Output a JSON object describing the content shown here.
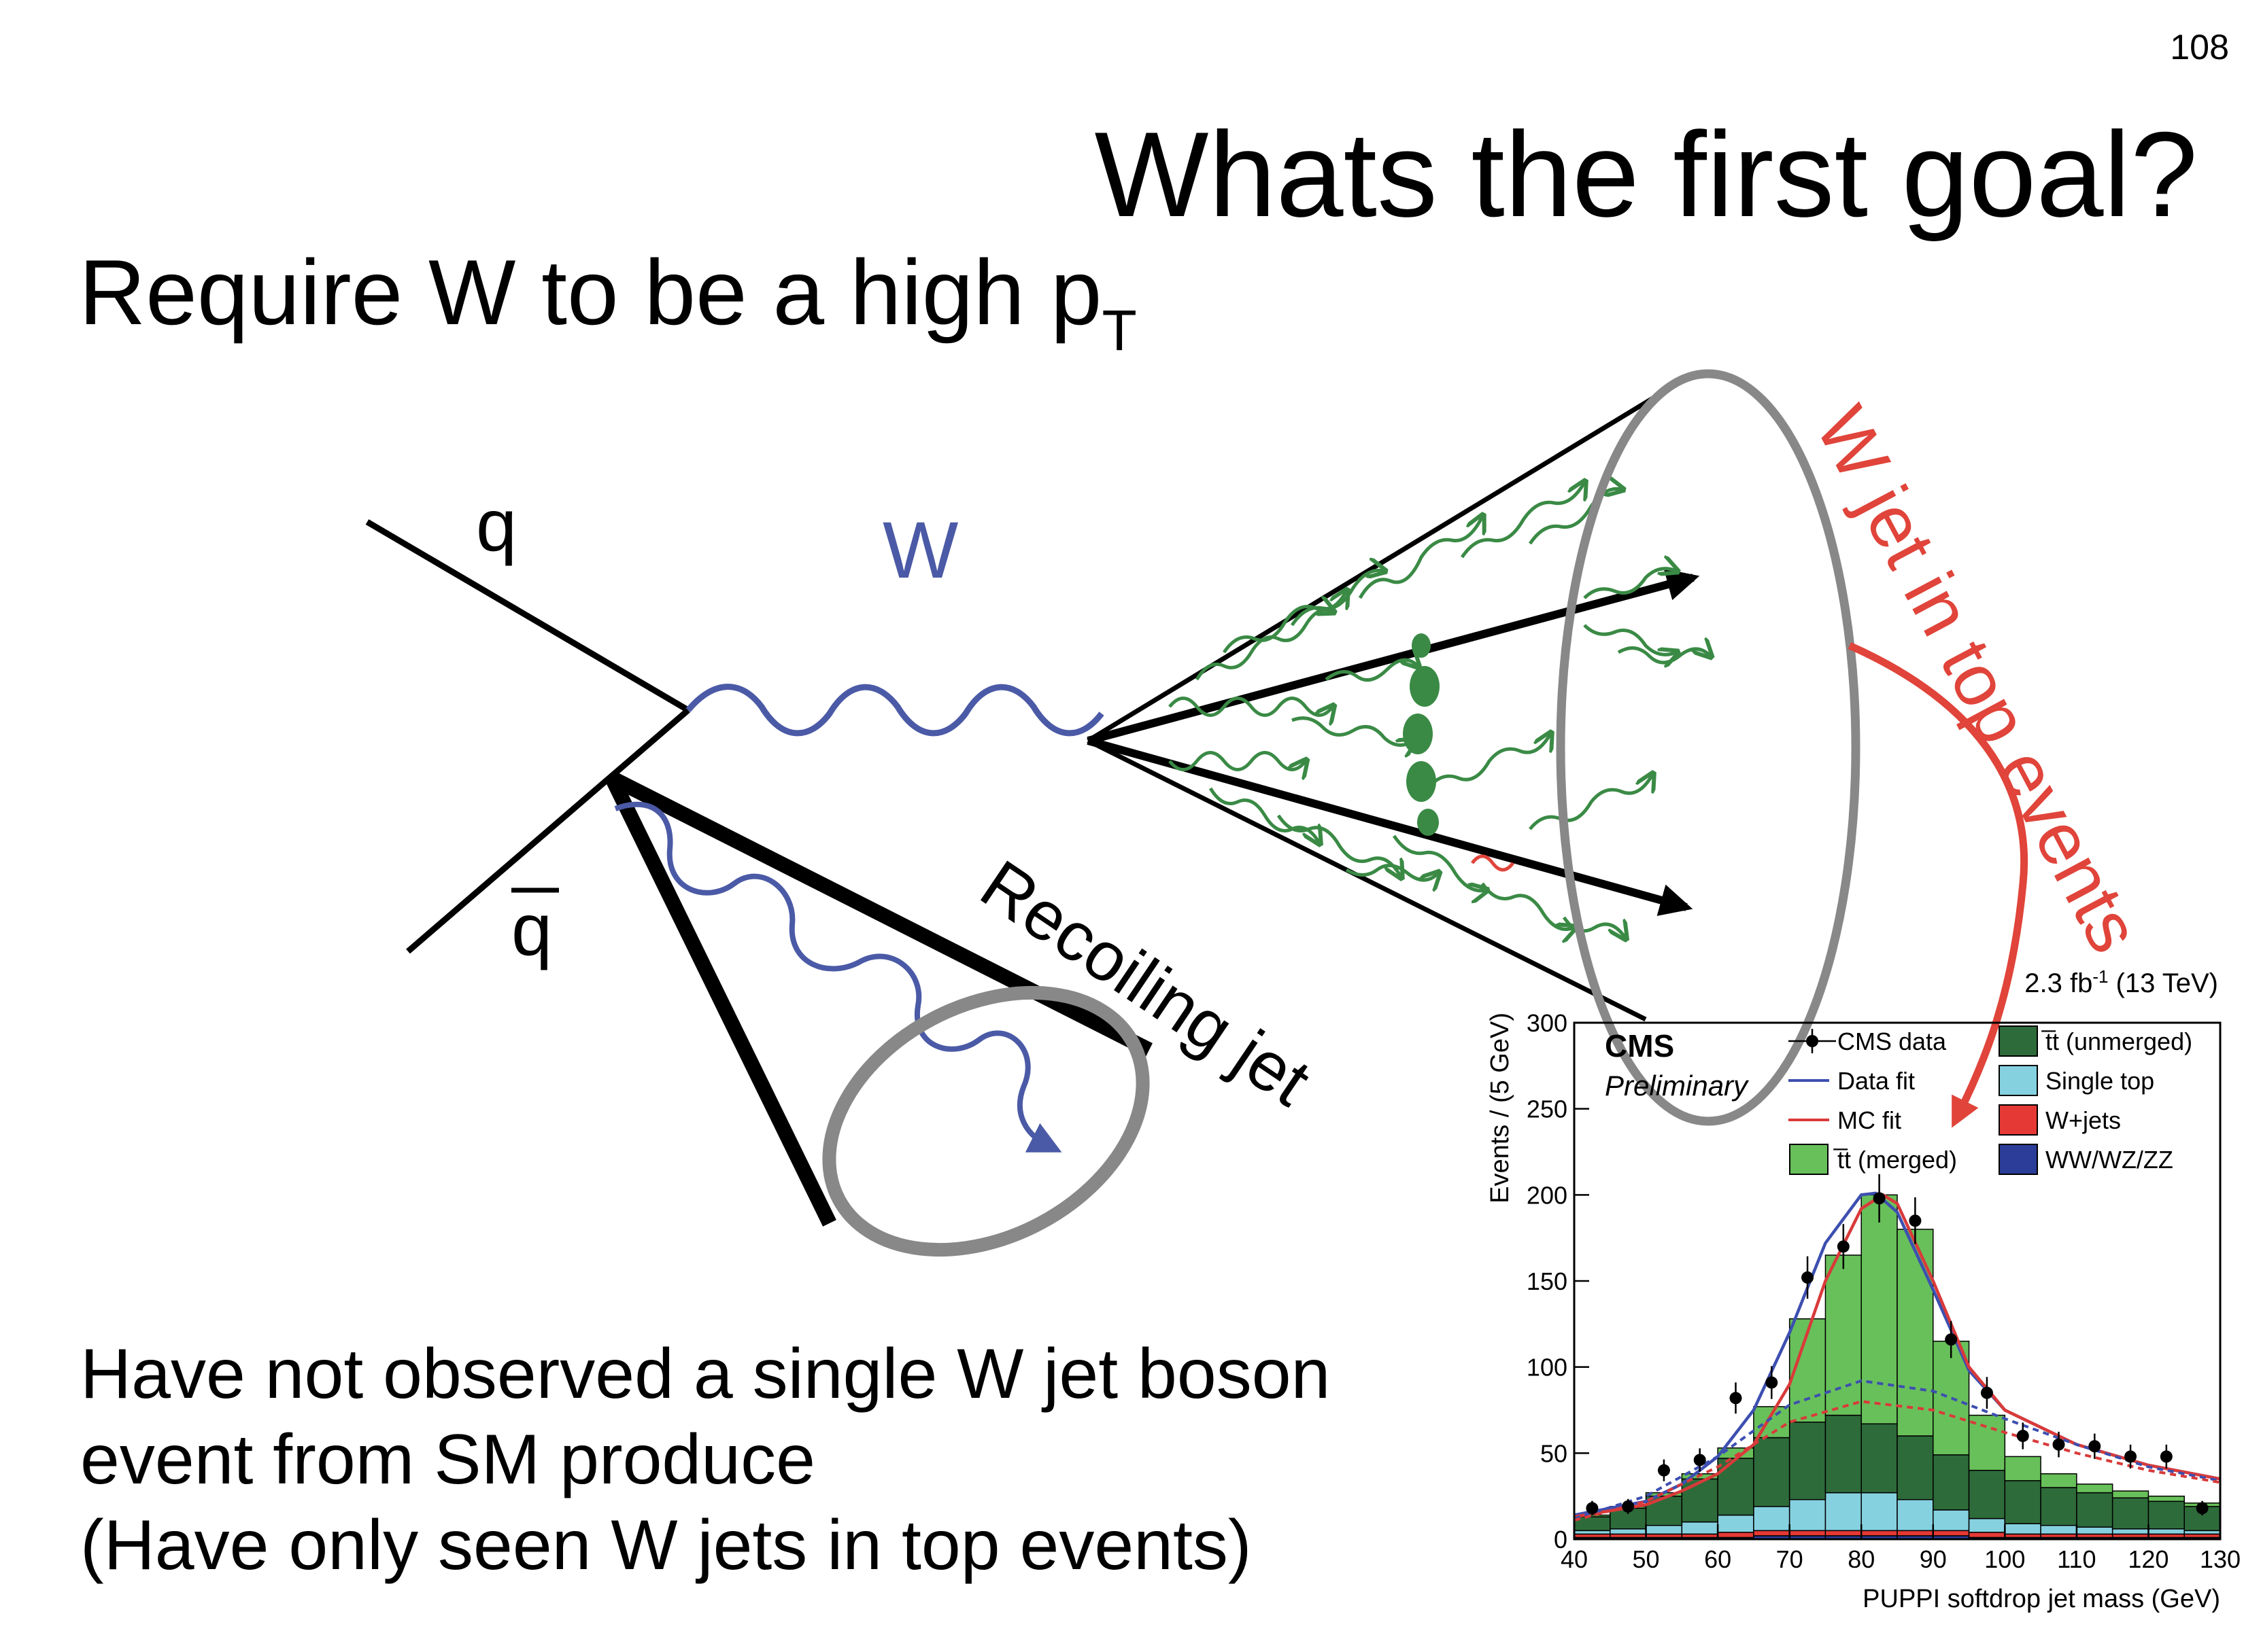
{
  "page_number": "108",
  "title": "Whats the first goal?",
  "subtitle": {
    "text": "Require W to be a high p",
    "subscript": "T"
  },
  "diagram": {
    "label_q": "q",
    "label_qbar": "q",
    "label_w": "W",
    "label_recoiling_jet": "Recoiling jet",
    "label_w_jet_top": "W jet in top events",
    "colors": {
      "w_boson": "#4b5aa6",
      "gluon": "#3a8a45",
      "annotation_red": "#e0443a",
      "ellipse_gray": "#888888"
    }
  },
  "bottom_text": [
    "Have not observed a single W jet boson",
    "event from SM produce",
    "(Have only seen W jets in top events)"
  ],
  "chart_data": {
    "type": "bar",
    "lumi_label": "2.3 fb",
    "lumi_exp": "-1",
    "lumi_energy": " (13 TeV)",
    "cms_label": "CMS",
    "cms_sub": "Preliminary",
    "xlabel": "PUPPI softdrop jet mass (GeV)",
    "ylabel": "Events / (5 GeV)",
    "xlim": [
      40,
      130
    ],
    "ylim": [
      0,
      300
    ],
    "xticks": [
      40,
      50,
      60,
      70,
      80,
      90,
      100,
      110,
      120,
      130
    ],
    "yticks": [
      0,
      50,
      100,
      150,
      200,
      250,
      300
    ],
    "bin_edges": [
      40,
      45,
      50,
      55,
      60,
      65,
      70,
      75,
      80,
      85,
      90,
      95,
      100,
      105,
      110,
      115,
      120,
      125,
      130
    ],
    "stacks": [
      {
        "name": "WW/WZ/ZZ",
        "color": "#2b3d98",
        "values": [
          1,
          1,
          1,
          1,
          1,
          2,
          2,
          2,
          2,
          2,
          2,
          1,
          1,
          1,
          1,
          1,
          1,
          1
        ]
      },
      {
        "name": "W+jets",
        "color": "#e53935",
        "values": [
          2,
          2,
          2,
          2,
          3,
          3,
          3,
          3,
          3,
          3,
          3,
          3,
          2,
          2,
          2,
          2,
          2,
          2
        ]
      },
      {
        "name": "Single top",
        "color": "#86d1e0",
        "values": [
          2,
          3,
          5,
          7,
          10,
          14,
          18,
          22,
          22,
          18,
          12,
          8,
          6,
          5,
          4,
          3,
          3,
          2
        ]
      },
      {
        "name": "t̅t (unmerged)",
        "color": "#2e6b3a",
        "values": [
          8,
          12,
          17,
          25,
          33,
          40,
          45,
          45,
          40,
          37,
          32,
          28,
          25,
          22,
          20,
          18,
          16,
          14
        ]
      },
      {
        "name": "t̅t (merged)",
        "color": "#68c05a",
        "values": [
          1,
          1,
          2,
          3,
          6,
          18,
          60,
          93,
          133,
          120,
          66,
          32,
          14,
          8,
          5,
          4,
          3,
          2
        ]
      }
    ],
    "data_points": {
      "name": "CMS data",
      "x": [
        42.5,
        47.5,
        52.5,
        57.5,
        62.5,
        67.5,
        72.5,
        77.5,
        82.5,
        87.5,
        92.5,
        97.5,
        102.5,
        107.5,
        112.5,
        117.5,
        122.5,
        127.5
      ],
      "y": [
        18,
        19,
        40,
        46,
        82,
        91,
        152,
        170,
        198,
        185,
        116,
        85,
        60,
        55,
        54,
        48,
        48,
        18
      ]
    },
    "curves": [
      {
        "name": "Data fit",
        "color": "#3d4fb0",
        "dash": false,
        "x": [
          40,
          50,
          55,
          60,
          65,
          70,
          75,
          80,
          82,
          85,
          90,
          95,
          100,
          110,
          120,
          130
        ],
        "y": [
          14,
          22,
          32,
          48,
          75,
          120,
          172,
          200,
          201,
          190,
          145,
          98,
          75,
          55,
          43,
          35
        ]
      },
      {
        "name": "MC fit",
        "color": "#d93a3a",
        "dash": false,
        "x": [
          40,
          50,
          55,
          60,
          65,
          70,
          75,
          80,
          83,
          85,
          90,
          95,
          100,
          110,
          120,
          130
        ],
        "y": [
          13,
          20,
          28,
          38,
          55,
          90,
          150,
          192,
          200,
          195,
          150,
          100,
          75,
          55,
          43,
          35
        ]
      },
      {
        "name": "Data fit component",
        "color": "#3d4fb0",
        "dash": true,
        "x": [
          40,
          50,
          60,
          70,
          80,
          90,
          100,
          110,
          120,
          130
        ],
        "y": [
          12,
          25,
          48,
          78,
          92,
          86,
          70,
          55,
          42,
          34
        ]
      },
      {
        "name": "MC fit component",
        "color": "#d93a3a",
        "dash": true,
        "x": [
          40,
          50,
          60,
          70,
          80,
          90,
          100,
          110,
          120,
          130
        ],
        "y": [
          11,
          22,
          42,
          68,
          80,
          75,
          62,
          50,
          40,
          33
        ]
      }
    ],
    "legend": {
      "left": [
        {
          "label": "CMS data",
          "kind": "marker"
        },
        {
          "label": "Data fit",
          "kind": "line",
          "color": "#3d4fb0"
        },
        {
          "label": "MC fit",
          "kind": "line",
          "color": "#d93a3a"
        },
        {
          "label": "t̅t (merged)",
          "kind": "box",
          "color": "#68c05a"
        }
      ],
      "right": [
        {
          "label": "t̅t (unmerged)",
          "kind": "box",
          "color": "#2e6b3a"
        },
        {
          "label": "Single top",
          "kind": "box",
          "color": "#86d1e0"
        },
        {
          "label": "W+jets",
          "kind": "box",
          "color": "#e53935"
        },
        {
          "label": "WW/WZ/ZZ",
          "kind": "box",
          "color": "#2b3d98"
        }
      ]
    },
    "legend_placement": "top"
  }
}
